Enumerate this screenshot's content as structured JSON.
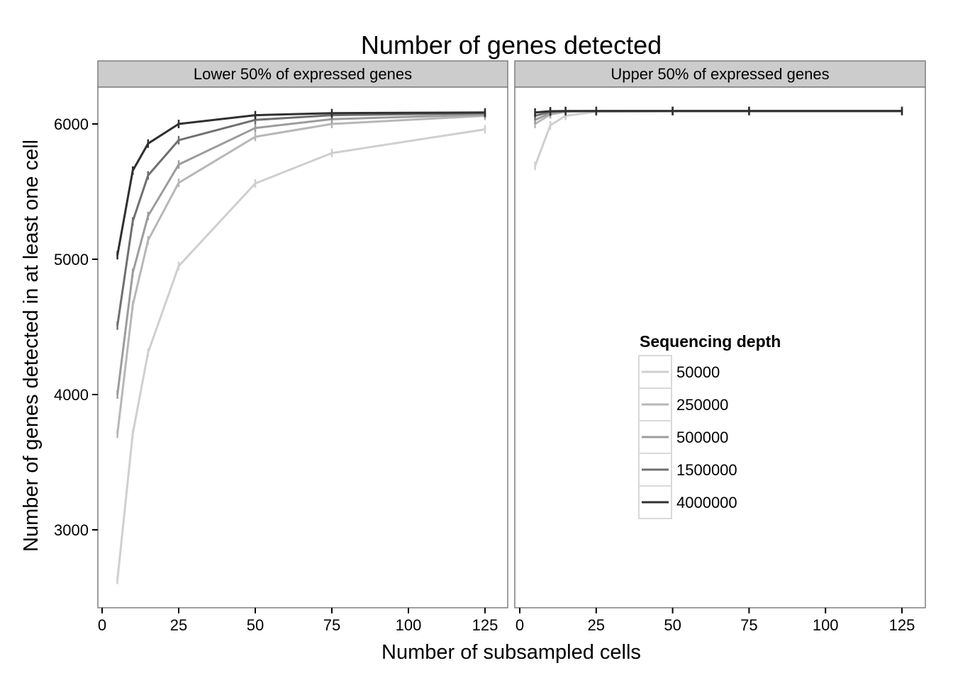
{
  "chart_data": {
    "type": "line",
    "title": "Number of genes detected",
    "xlabel": "Number of subsampled cells",
    "ylabel": "Number of genes detected in at least one cell",
    "x": [
      5,
      10,
      15,
      25,
      50,
      75,
      125
    ],
    "xlim": [
      0,
      130
    ],
    "ylim": [
      2450,
      6280
    ],
    "xticks": [
      0,
      25,
      50,
      75,
      100,
      125
    ],
    "yticks": [
      3000,
      4000,
      5000,
      6000
    ],
    "grid": false,
    "legend": {
      "title": "Sequencing depth",
      "placement": "inside-right-panel"
    },
    "series_style": [
      {
        "name": "50000",
        "color": "#cfcfcf"
      },
      {
        "name": "250000",
        "color": "#b7b7b7"
      },
      {
        "name": "500000",
        "color": "#9c9c9c"
      },
      {
        "name": "1500000",
        "color": "#707070"
      },
      {
        "name": "4000000",
        "color": "#303030"
      }
    ],
    "panels": [
      {
        "label": "Lower 50% of expressed genes",
        "series": [
          {
            "name": "50000",
            "values": [
              2630,
              3710,
              4310,
              4950,
              5560,
              5785,
              5960
            ]
          },
          {
            "name": "250000",
            "values": [
              3710,
              4660,
              5140,
              5565,
              5905,
              6000,
              6060
            ]
          },
          {
            "name": "500000",
            "values": [
              4000,
              4900,
              5320,
              5700,
              5970,
              6035,
              6070
            ]
          },
          {
            "name": "1500000",
            "values": [
              4510,
              5280,
              5620,
              5880,
              6030,
              6065,
              6080
            ]
          },
          {
            "name": "4000000",
            "values": [
              5030,
              5655,
              5855,
              6000,
              6065,
              6080,
              6085
            ]
          }
        ]
      },
      {
        "label": "Upper 50% of expressed genes",
        "series": [
          {
            "name": "50000",
            "values": [
              5690,
              5990,
              6060,
              6090,
              6095,
              6096,
              6096
            ]
          },
          {
            "name": "250000",
            "values": [
              6000,
              6070,
              6090,
              6095,
              6096,
              6096,
              6096
            ]
          },
          {
            "name": "500000",
            "values": [
              6030,
              6080,
              6093,
              6096,
              6096,
              6096,
              6096
            ]
          },
          {
            "name": "1500000",
            "values": [
              6060,
              6090,
              6095,
              6096,
              6096,
              6096,
              6096
            ]
          },
          {
            "name": "4000000",
            "values": [
              6085,
              6094,
              6096,
              6096,
              6096,
              6096,
              6096
            ]
          }
        ]
      }
    ]
  }
}
